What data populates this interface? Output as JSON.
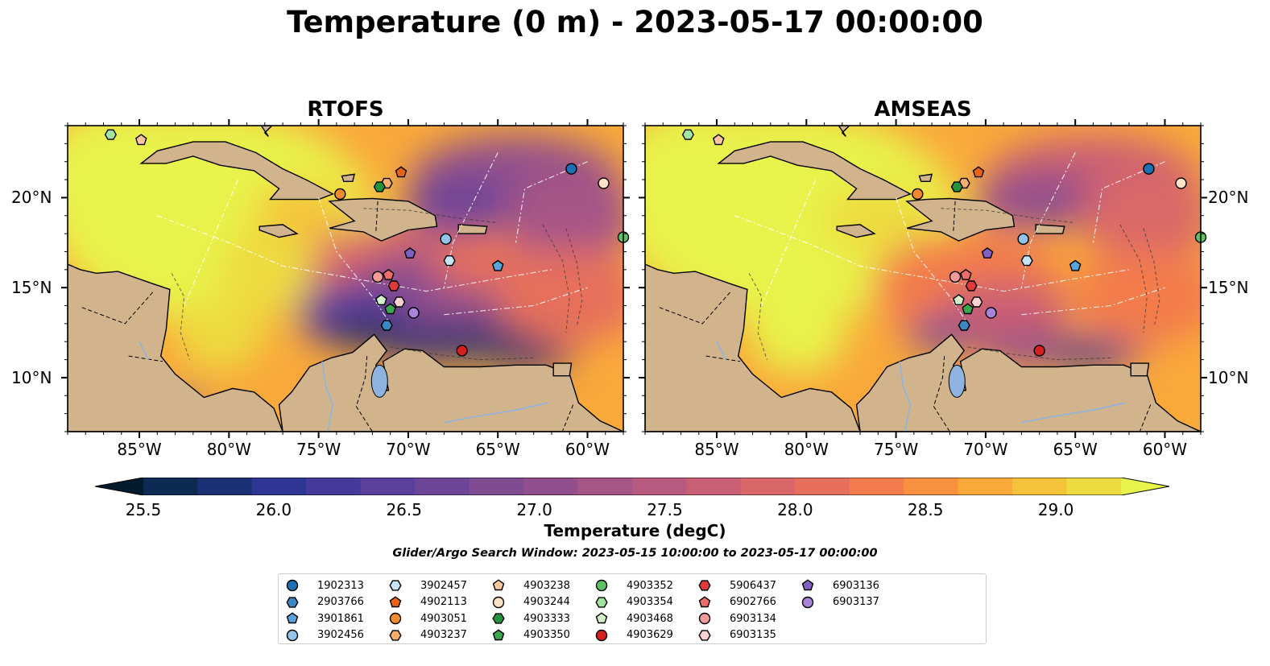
{
  "title": "Temperature (0 m) - 2023-05-17 00:00:00",
  "panels": [
    {
      "id": "rtofs",
      "title": "RTOFS"
    },
    {
      "id": "amseas",
      "title": "AMSEAS"
    }
  ],
  "map": {
    "lon_range": [
      -89,
      -58
    ],
    "lat_range": [
      7,
      24
    ],
    "x_ticks": [
      "85°W",
      "80°W",
      "75°W",
      "70°W",
      "65°W",
      "60°W"
    ],
    "x_tick_values": [
      -85,
      -80,
      -75,
      -70,
      -65,
      -60
    ],
    "y_ticks": [
      "20°N",
      "15°N",
      "10°N"
    ],
    "y_tick_values": [
      20,
      15,
      10
    ],
    "land_color": "#d2b48c",
    "lake_color": "#8fb3e0",
    "y_labels_left_panel": "left",
    "y_labels_right_panel": "right"
  },
  "colorbar": {
    "label": "Temperature (degC)",
    "ticks": [
      "25.5",
      "26.0",
      "26.5",
      "27.0",
      "27.5",
      "28.0",
      "28.5",
      "29.0"
    ],
    "tick_values": [
      25.5,
      26.0,
      26.5,
      27.0,
      27.5,
      28.0,
      28.5,
      29.0
    ],
    "range": [
      25.5,
      29.25
    ],
    "extend": "both",
    "colors": [
      "#031b2d",
      "#0d2a52",
      "#1c3175",
      "#2f3593",
      "#453a9c",
      "#5a3f9c",
      "#6c4597",
      "#7f4c92",
      "#914f8d",
      "#a55587",
      "#b85a80",
      "#c95f75",
      "#d96769",
      "#e66f5b",
      "#f37c4c",
      "#f8913f",
      "#f9a93a",
      "#f5c33a",
      "#eddc40",
      "#e8f34c"
    ]
  },
  "search_window": "Glider/Argo Search Window: 2023-05-15 10:00:00 to 2023-05-17 00:00:00",
  "legend": [
    {
      "id": "1902313",
      "shape": "circle",
      "color": "#1f6fb4"
    },
    {
      "id": "2903766",
      "shape": "hexagon",
      "color": "#3a87c4"
    },
    {
      "id": "3901861",
      "shape": "pentagon",
      "color": "#59a3d8"
    },
    {
      "id": "3902456",
      "shape": "circle",
      "color": "#92c3ea"
    },
    {
      "id": "3902457",
      "shape": "hexagon",
      "color": "#c6e3f7"
    },
    {
      "id": "4902113",
      "shape": "pentagon",
      "color": "#e86412"
    },
    {
      "id": "4903051",
      "shape": "circle",
      "color": "#f28a2e"
    },
    {
      "id": "4903237",
      "shape": "hexagon",
      "color": "#f8ad6b"
    },
    {
      "id": "4903238",
      "shape": "pentagon",
      "color": "#fcc79c"
    },
    {
      "id": "4903244",
      "shape": "circle",
      "color": "#fde2c6"
    },
    {
      "id": "4903333",
      "shape": "hexagon",
      "color": "#24933b"
    },
    {
      "id": "4903350",
      "shape": "pentagon",
      "color": "#3aa64e"
    },
    {
      "id": "4903352",
      "shape": "circle",
      "color": "#5dc063"
    },
    {
      "id": "4903354",
      "shape": "hexagon",
      "color": "#a4e3a0"
    },
    {
      "id": "4903468",
      "shape": "pentagon",
      "color": "#d3f1c9"
    },
    {
      "id": "4903629",
      "shape": "circle",
      "color": "#d62020"
    },
    {
      "id": "5906437",
      "shape": "hexagon",
      "color": "#e03a3a"
    },
    {
      "id": "6902766",
      "shape": "pentagon",
      "color": "#ee6b6b"
    },
    {
      "id": "6903134",
      "shape": "circle",
      "color": "#f39a9a"
    },
    {
      "id": "6903135",
      "shape": "hexagon",
      "color": "#fad2d2"
    },
    {
      "id": "6903136",
      "shape": "pentagon",
      "color": "#8060c0"
    },
    {
      "id": "6903137",
      "shape": "circle",
      "color": "#a784d7"
    }
  ],
  "floats": [
    {
      "id": "1902313",
      "lon": -60.9,
      "lat": 21.6
    },
    {
      "id": "2903766",
      "lon": -71.2,
      "lat": 12.9
    },
    {
      "id": "3901861",
      "lon": -65.0,
      "lat": 16.2
    },
    {
      "id": "3902456",
      "lon": -67.9,
      "lat": 17.7
    },
    {
      "id": "3902457",
      "lon": -67.7,
      "lat": 16.5
    },
    {
      "id": "4902113",
      "lon": -70.4,
      "lat": 21.4
    },
    {
      "id": "4903051",
      "lon": -73.8,
      "lat": 20.2
    },
    {
      "id": "4903237",
      "lon": -71.2,
      "lat": 20.8
    },
    {
      "id": "4903238",
      "lon": -84.9,
      "lat": 23.2
    },
    {
      "id": "4903244",
      "lon": -59.1,
      "lat": 20.8
    },
    {
      "id": "4903333",
      "lon": -71.6,
      "lat": 20.6
    },
    {
      "id": "4903350",
      "lon": -71.0,
      "lat": 13.8
    },
    {
      "id": "4903352",
      "lon": -58.0,
      "lat": 17.8
    },
    {
      "id": "4903354",
      "lon": -86.6,
      "lat": 23.5
    },
    {
      "id": "4903468",
      "lon": -71.5,
      "lat": 14.3
    },
    {
      "id": "4903629",
      "lon": -67.0,
      "lat": 11.5
    },
    {
      "id": "5906437",
      "lon": -70.8,
      "lat": 15.1
    },
    {
      "id": "6902766",
      "lon": -71.1,
      "lat": 15.7
    },
    {
      "id": "6903134",
      "lon": -71.7,
      "lat": 15.6
    },
    {
      "id": "6903135",
      "lon": -70.5,
      "lat": 14.2
    },
    {
      "id": "6903136",
      "lon": -69.9,
      "lat": 16.9
    },
    {
      "id": "6903137",
      "lon": -69.7,
      "lat": 13.6
    }
  ]
}
